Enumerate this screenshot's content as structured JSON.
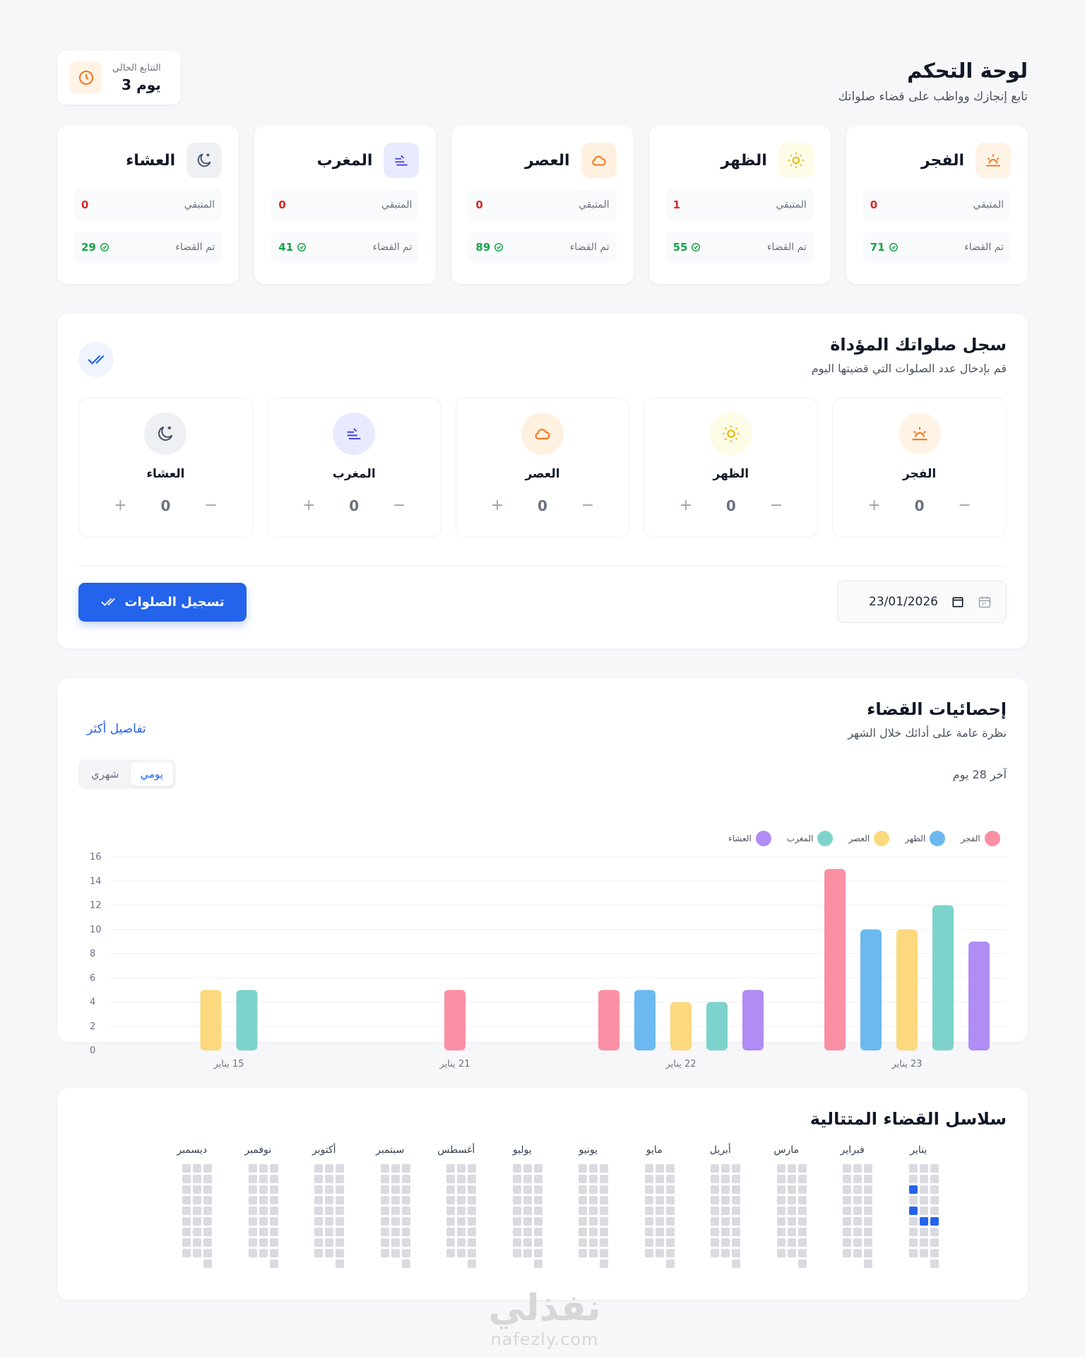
{
  "header": {
    "title": "لوحة التحكم",
    "subtitle": "تابع إنجازك وواظب على قضاء صلواتك",
    "streak_label": "التتابع الحالي",
    "streak_value": "3 يوم"
  },
  "summary": {
    "remaining_label": "المتبقي",
    "done_label": "تم القضاء",
    "cards": [
      {
        "name": "الفجر",
        "remaining": "0",
        "done": "71",
        "icon": "sunrise-icon",
        "color": "#f97316",
        "bg": "#fff3e6"
      },
      {
        "name": "الظهر",
        "remaining": "1",
        "done": "55",
        "icon": "sun-icon",
        "color": "#eab308",
        "bg": "#fefbe6"
      },
      {
        "name": "العصر",
        "remaining": "0",
        "done": "89",
        "icon": "cloud-sun-icon",
        "color": "#f97316",
        "bg": "#fff0e0"
      },
      {
        "name": "المغرب",
        "remaining": "0",
        "done": "41",
        "icon": "sunset-icon",
        "color": "#4f46e5",
        "bg": "#e8eaff"
      },
      {
        "name": "العشاء",
        "remaining": "0",
        "done": "29",
        "icon": "moon-icon",
        "color": "#475569",
        "bg": "#eef0f4"
      }
    ]
  },
  "log": {
    "title": "سجل صلواتك المؤداة",
    "subtitle": "قم بإدخال عدد الصلوات التي قضيتها اليوم",
    "counters": [
      {
        "name": "الفجر",
        "value": "0"
      },
      {
        "name": "الظهر",
        "value": "0"
      },
      {
        "name": "العصر",
        "value": "0"
      },
      {
        "name": "المغرب",
        "value": "0"
      },
      {
        "name": "العشاء",
        "value": "0"
      }
    ],
    "date_value": "23/01/2026",
    "submit_label": "تسجيل الصلوات"
  },
  "stats": {
    "title": "إحصائيات القضاء",
    "subtitle": "نظرة عامة على أدائك خلال الشهر",
    "more_link": "تفاصيل أكثر",
    "period_label": "آخر 28 يوم",
    "toggle_daily": "يومي",
    "toggle_monthly": "شهري"
  },
  "chart_data": {
    "type": "bar",
    "categories": [
      "15 يناير",
      "21 يناير",
      "22 يناير",
      "23 يناير"
    ],
    "series": [
      {
        "name": "الفجر",
        "color": "#fb8fa4",
        "values": [
          0,
          5,
          5,
          15
        ]
      },
      {
        "name": "الظهر",
        "color": "#6cb8f0",
        "values": [
          0,
          0,
          5,
          10
        ]
      },
      {
        "name": "العصر",
        "color": "#fcd97e",
        "values": [
          5,
          0,
          4,
          10
        ]
      },
      {
        "name": "المغرب",
        "color": "#7dd3cc",
        "values": [
          5,
          0,
          4,
          12
        ]
      },
      {
        "name": "العشاء",
        "color": "#b08cf5",
        "values": [
          0,
          0,
          5,
          9
        ]
      }
    ],
    "y_ticks": [
      "0",
      "2",
      "4",
      "6",
      "8",
      "10",
      "12",
      "14",
      "16"
    ],
    "ylim": [
      0,
      16
    ],
    "grid": true,
    "legend": "top-right"
  },
  "streaks": {
    "title": "سلاسل القضاء المتتالية",
    "months": [
      "يناير",
      "فبراير",
      "مارس",
      "أبريل",
      "مايو",
      "يونيو",
      "يوليو",
      "أغسطس",
      "سبتمبر",
      "أكتوبر",
      "نوفمبر",
      "ديسمبر"
    ]
  },
  "watermark": {
    "main": "نفذلي",
    "sub": "nafezly.com"
  }
}
